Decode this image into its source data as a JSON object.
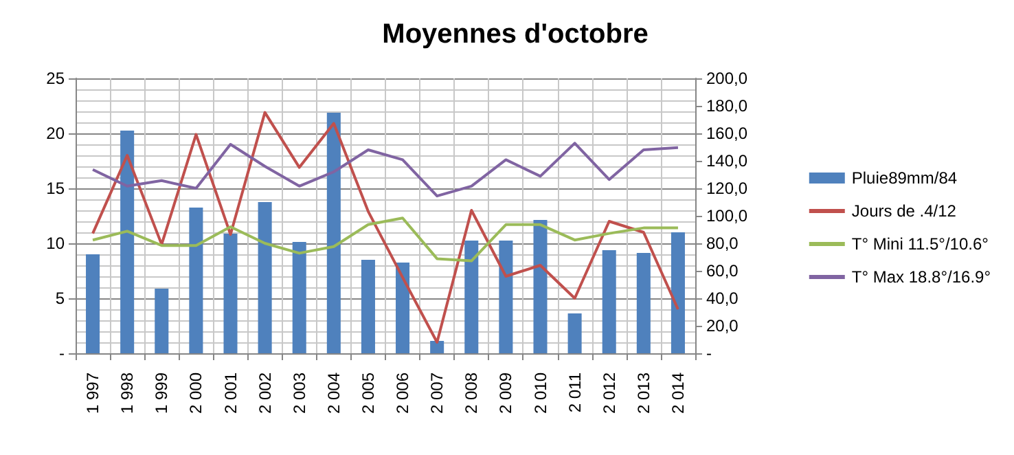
{
  "chart_data": {
    "type": "line",
    "title": "Moyennes d'octobre",
    "categories": [
      "1 997",
      "1 998",
      "1 999",
      "2 000",
      "2 001",
      "2 002",
      "2 003",
      "2 004",
      "2 005",
      "2 006",
      "2 007",
      "2 008",
      "2 009",
      "2 010",
      "2 011",
      "2 012",
      "2 013",
      "2 014"
    ],
    "series": [
      {
        "name": "Pluie89mm/84",
        "type": "bar",
        "axis": "y2",
        "color": "#4f81bd",
        "values": [
          72,
          162,
          47,
          106,
          87,
          110,
          81,
          175,
          68,
          66,
          9,
          82,
          82,
          97,
          29,
          75,
          73,
          88
        ]
      },
      {
        "name": "Jours de .4/12",
        "color": "#c0504d",
        "values": [
          10.9,
          18,
          9.9,
          19.9,
          10.8,
          21.9,
          16.9,
          20.9,
          12.9,
          6.9,
          1,
          13,
          7,
          8,
          5,
          12,
          11,
          4
        ]
      },
      {
        "name": "T° Mini 11.5°/10.6°",
        "color": "#9bbb59",
        "values": [
          10.3,
          11.1,
          9.8,
          9.8,
          11.5,
          10,
          9.1,
          9.7,
          11.7,
          12.3,
          8.6,
          8.4,
          11.7,
          11.7,
          10.3,
          10.9,
          11.4,
          11.4
        ]
      },
      {
        "name": "T° Max 18.8°/16.9°",
        "color": "#8064a2",
        "values": [
          16.7,
          15.2,
          15.7,
          15,
          19,
          17,
          15.2,
          16.5,
          18.5,
          17.6,
          14.3,
          15.2,
          17.6,
          16.1,
          19.1,
          15.8,
          18.5,
          18.7
        ]
      }
    ],
    "ylim": [
      0,
      25
    ],
    "yticks": [
      {
        "value": 0,
        "label": "-"
      },
      5,
      10,
      15,
      20,
      25
    ],
    "y2lim": [
      0,
      200
    ],
    "y2ticks": [
      {
        "value": 0,
        "label": "-"
      },
      {
        "value": 20,
        "label": "20,0"
      },
      {
        "value": 40,
        "label": "40,0"
      },
      {
        "value": 60,
        "label": "60,0"
      },
      {
        "value": 80,
        "label": "80,0"
      },
      {
        "value": 100,
        "label": "100,0"
      },
      {
        "value": 120,
        "label": "120,0"
      },
      {
        "value": 140,
        "label": "140,0"
      },
      {
        "value": 160,
        "label": "160,0"
      },
      {
        "value": 180,
        "label": "180,0"
      },
      {
        "value": 200,
        "label": "200,0"
      }
    ],
    "grid": true,
    "legend": "right",
    "marker": "none",
    "line_style": "solid"
  }
}
